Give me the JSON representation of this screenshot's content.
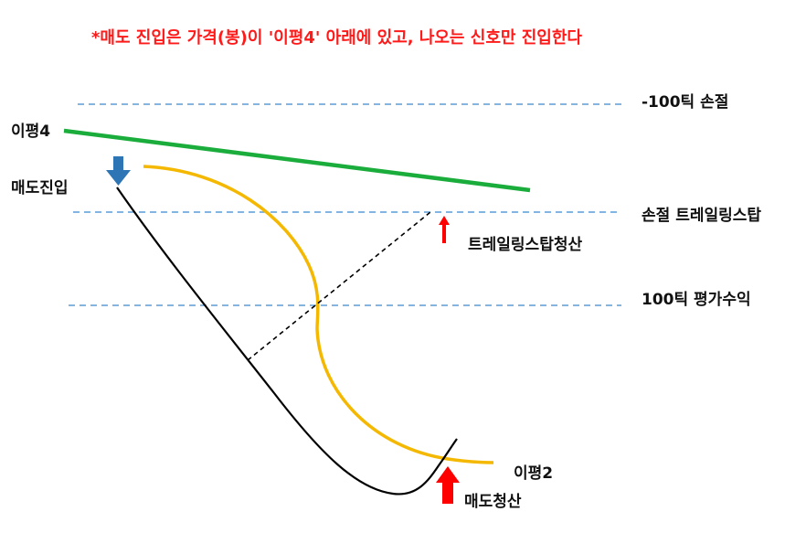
{
  "title": "*매도 진입은 가격(봉)이 '이평4' 아래에 있고, 나오는 신호만 진입한다",
  "levels": {
    "stop_loss_100": "-100틱 손절",
    "trailing_stop": "손절 트레일링스탑",
    "profit_100": "100틱 평가수익"
  },
  "lines": {
    "ma4": "이평4",
    "ma2": "이평2"
  },
  "markers": {
    "entry": "매도진입",
    "trailing_exit": "트레일링스탑청산",
    "exit": "매도청산"
  },
  "colors": {
    "title": "#ff1a1a",
    "dashed_level": "#5b9bd5",
    "ma4": "#1aad3c",
    "ma2": "#f5b800",
    "price": "#000000",
    "entry_arrow": "#2e75b6",
    "exit_arrow": "#ff0000"
  },
  "icons": {
    "entry": "down-arrow-icon",
    "trailing_exit": "up-arrow-icon",
    "exit": "up-arrow-icon"
  }
}
